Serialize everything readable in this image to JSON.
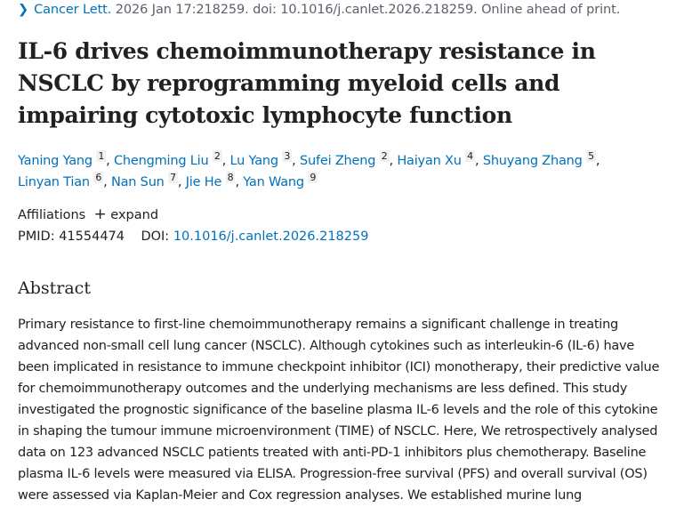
{
  "citation": {
    "journal": "Cancer Lett.",
    "rest": " 2026 Jan 17:218259. doi: 10.1016/j.canlet.2026.218259. Online ahead of print."
  },
  "title": "IL-6 drives chemoimmunotherapy resistance in NSCLC by reprogramming myeloid cells and impairing cytotoxic lymphocyte function",
  "authors": [
    {
      "name": "Yaning Yang",
      "aff": "1"
    },
    {
      "name": "Chengming Liu",
      "aff": "2"
    },
    {
      "name": "Lu Yang",
      "aff": "3"
    },
    {
      "name": "Sufei Zheng",
      "aff": "2"
    },
    {
      "name": "Haiyan Xu",
      "aff": "4"
    },
    {
      "name": "Shuyang Zhang",
      "aff": "5"
    },
    {
      "name": "Linyan Tian",
      "aff": "6"
    },
    {
      "name": "Nan Sun",
      "aff": "7"
    },
    {
      "name": "Jie He",
      "aff": "8"
    },
    {
      "name": "Yan Wang",
      "aff": "9"
    }
  ],
  "affiliations": {
    "label": "Affiliations",
    "expand": "expand"
  },
  "ids": {
    "pmid_label": "PMID:",
    "pmid": "41554474",
    "doi_label": "DOI:",
    "doi": "10.1016/j.canlet.2026.218259"
  },
  "abstract": {
    "heading": "Abstract",
    "text": "Primary resistance to first-line chemoimmunotherapy remains a significant challenge in treating advanced non-small cell lung cancer (NSCLC). Although cytokines such as interleukin-6 (IL-6) have been implicated in resistance to immune checkpoint inhibitor (ICI) monotherapy, their predictive value for chemoimmunotherapy outcomes and the underlying mechanisms are less defined. This study investigated the prognostic significance of the baseline plasma IL-6 levels and the role of this cytokine in shaping the tumour immune microenvironment (TIME) of NSCLC. Here, We retrospectively analysed data on 123 advanced NSCLC patients treated with anti-PD-1 inhibitors plus chemotherapy. Baseline plasma IL-6 levels were measured via ELISA. Progression-free survival (PFS) and overall survival (OS) were assessed via Kaplan-Meier and Cox regression analyses. We established murine lung"
  }
}
